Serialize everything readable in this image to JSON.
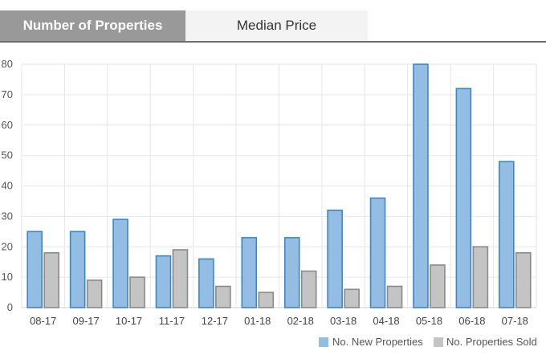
{
  "tabs": [
    {
      "label": "Number of Properties",
      "active": true
    },
    {
      "label": "Median Price",
      "active": false
    }
  ],
  "colors": {
    "new_fill": "#94bde4",
    "new_stroke": "#3d86c6",
    "sold_fill": "#c4c4c4",
    "sold_stroke": "#8a8a8a",
    "grid": "#e6e6e6",
    "tab_active_bg": "#999999"
  },
  "chart_data": {
    "type": "bar",
    "categories": [
      "08-17",
      "09-17",
      "10-17",
      "11-17",
      "12-17",
      "01-18",
      "02-18",
      "03-18",
      "04-18",
      "05-18",
      "06-18",
      "07-18"
    ],
    "series": [
      {
        "name": "No. New Properties",
        "values": [
          25,
          25,
          29,
          17,
          16,
          23,
          23,
          32,
          36,
          80,
          72,
          48
        ]
      },
      {
        "name": "No. Properties Sold",
        "values": [
          18,
          9,
          10,
          19,
          7,
          5,
          12,
          6,
          7,
          14,
          20,
          18
        ]
      }
    ],
    "ylim": [
      0,
      80
    ],
    "yticks": [
      0,
      10,
      20,
      30,
      40,
      50,
      60,
      70,
      80
    ],
    "grid": true,
    "legend_position": "bottom-right"
  }
}
